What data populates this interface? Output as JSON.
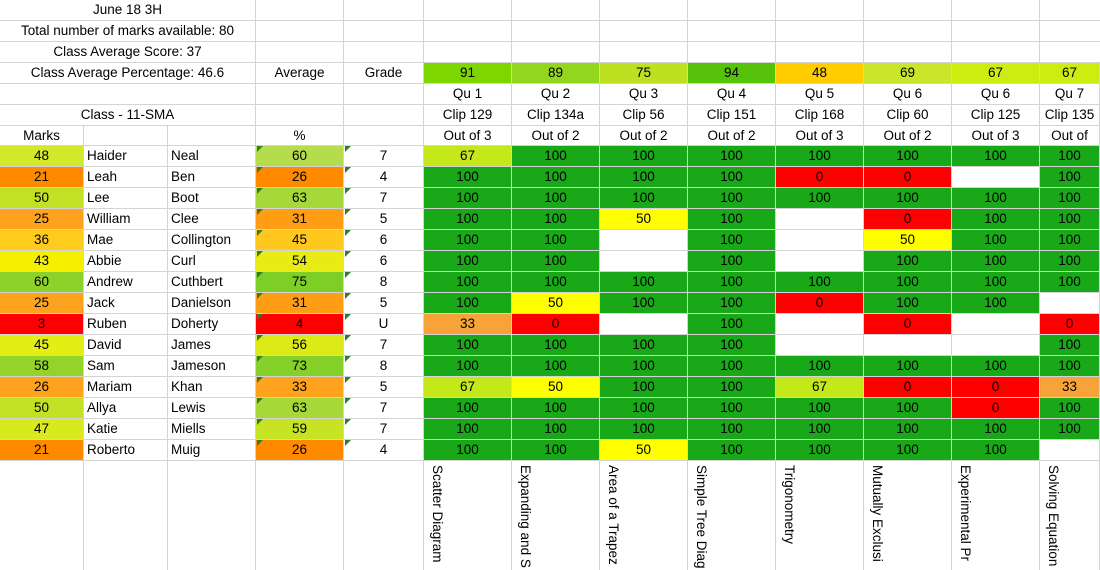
{
  "header": {
    "title": "June 18 3H",
    "total_marks": "Total number of marks available: 80",
    "class_avg_score": "Class Average Score: 37",
    "class_avg_pct": "Class Average Percentage: 46.6",
    "average_label": "Average",
    "grade_label": "Grade",
    "class_label": "Class - 11-SMA",
    "marks_label": "Marks",
    "pct_label": "%"
  },
  "colors": {
    "dark_green": "#2BA713",
    "light_green": "#99CC1A",
    "yellow_green": "#C7EA0E",
    "yellow": "#FFFF00",
    "amber": "#FFC000",
    "orange": "#FF8C0A",
    "light_orange": "#FFA41E",
    "red": "#FF0000",
    "white": "#FFFFFF"
  },
  "questions": [
    {
      "avg": "91",
      "qu": "Qu 1",
      "clip": "Clip 129",
      "out_of": "Out of 3",
      "topic": "Scatter Diagram",
      "color": "#7ed600"
    },
    {
      "avg": "89",
      "qu": "Qu 2",
      "clip": "Clip 134a",
      "out_of": "Out of 2",
      "topic": "Expanding and S",
      "color": "#92d61e"
    },
    {
      "avg": "75",
      "qu": "Qu 3",
      "clip": "Clip 56",
      "out_of": "Out of 2",
      "topic": "Area of a Trapez",
      "color": "#bde021"
    },
    {
      "avg": "94",
      "qu": "Qu 4",
      "clip": "Clip 151",
      "out_of": "Out of 2",
      "topic": "Simple Tree Diag",
      "color": "#56c20a"
    },
    {
      "avg": "48",
      "qu": "Qu 5",
      "clip": "Clip 168",
      "out_of": "Out of 3",
      "topic": "Trigonometry",
      "color": "#ffcc00"
    },
    {
      "avg": "69",
      "qu": "Qu 6",
      "clip": "Clip 60",
      "out_of": "Out of 2",
      "topic": "Mutually Exclusi",
      "color": "#c9e62a"
    },
    {
      "avg": "67",
      "qu": "Qu 6",
      "clip": "Clip 125",
      "out_of": "Out of 3",
      "topic": "Experimental Pr",
      "color": "#cdec10"
    },
    {
      "avg": "67",
      "qu": "Qu 7",
      "clip": "Clip 135",
      "out_of": "Out of",
      "topic": "Solving Equation",
      "color": "#cdec10"
    }
  ],
  "students": [
    {
      "marks": "48",
      "first": "Haider",
      "last": "Neal",
      "pct": "60",
      "grade": "7",
      "mcolor": "#d2e82a",
      "pcolor": "#b4dc4b",
      "scores": [
        "67",
        "100",
        "100",
        "100",
        "100",
        "100",
        "100",
        "100"
      ]
    },
    {
      "marks": "21",
      "first": "Leah",
      "last": "Ben",
      "pct": "26",
      "grade": "4",
      "mcolor": "#ff8a00",
      "pcolor": "#ff8a00",
      "scores": [
        "100",
        "100",
        "100",
        "100",
        "0",
        "0",
        "",
        "100"
      ]
    },
    {
      "marks": "50",
      "first": "Lee",
      "last": "Boot",
      "pct": "63",
      "grade": "7",
      "mcolor": "#c2e024",
      "pcolor": "#a6d83a",
      "scores": [
        "100",
        "100",
        "100",
        "100",
        "100",
        "100",
        "100",
        "100"
      ]
    },
    {
      "marks": "25",
      "first": "William",
      "last": "Clee",
      "pct": "31",
      "grade": "5",
      "mcolor": "#ffa31e",
      "pcolor": "#ff9e14",
      "scores": [
        "100",
        "100",
        "50",
        "100",
        "",
        "0",
        "100",
        "100"
      ]
    },
    {
      "marks": "36",
      "first": "Mae",
      "last": "Collington",
      "pct": "45",
      "grade": "6",
      "mcolor": "#ffcc1e",
      "pcolor": "#ffc81e",
      "scores": [
        "100",
        "100",
        "",
        "100",
        "",
        "50",
        "100",
        "100"
      ]
    },
    {
      "marks": "43",
      "first": "Abbie",
      "last": "Curl",
      "pct": "54",
      "grade": "6",
      "mcolor": "#f4f000",
      "pcolor": "#e8ec14",
      "scores": [
        "100",
        "100",
        "",
        "100",
        "",
        "100",
        "100",
        "100"
      ]
    },
    {
      "marks": "60",
      "first": "Andrew",
      "last": "Cuthbert",
      "pct": "75",
      "grade": "8",
      "mcolor": "#8cd22a",
      "pcolor": "#7ece28",
      "scores": [
        "100",
        "100",
        "100",
        "100",
        "100",
        "100",
        "100",
        "100"
      ]
    },
    {
      "marks": "25",
      "first": "Jack",
      "last": "Danielson",
      "pct": "31",
      "grade": "5",
      "mcolor": "#ffa31e",
      "pcolor": "#ff9e14",
      "scores": [
        "100",
        "50",
        "100",
        "100",
        "0",
        "100",
        "100",
        ""
      ]
    },
    {
      "marks": "3",
      "first": "Ruben",
      "last": "Doherty",
      "pct": "4",
      "grade": "U",
      "mcolor": "#ff0000",
      "pcolor": "#ff0000",
      "scores": [
        "33",
        "0",
        "",
        "100",
        "",
        "0",
        "",
        "0"
      ]
    },
    {
      "marks": "45",
      "first": "David",
      "last": "James",
      "pct": "56",
      "grade": "7",
      "mcolor": "#e4ee14",
      "pcolor": "#dceb18",
      "scores": [
        "100",
        "100",
        "100",
        "100",
        "",
        "",
        "",
        "100"
      ]
    },
    {
      "marks": "58",
      "first": "Sam",
      "last": "Jameson",
      "pct": "73",
      "grade": "8",
      "mcolor": "#94d42a",
      "pcolor": "#86d02a",
      "scores": [
        "100",
        "100",
        "100",
        "100",
        "100",
        "100",
        "100",
        "100"
      ]
    },
    {
      "marks": "26",
      "first": "Mariam",
      "last": "Khan",
      "pct": "33",
      "grade": "5",
      "mcolor": "#ffa31e",
      "pcolor": "#ffa31e",
      "scores": [
        "67",
        "50",
        "100",
        "100",
        "67",
        "0",
        "0",
        "33"
      ]
    },
    {
      "marks": "50",
      "first": "Allya",
      "last": "Lewis",
      "pct": "63",
      "grade": "7",
      "mcolor": "#c2e024",
      "pcolor": "#a6d83a",
      "scores": [
        "100",
        "100",
        "100",
        "100",
        "100",
        "100",
        "0",
        "100"
      ]
    },
    {
      "marks": "47",
      "first": "Katie",
      "last": "Miells",
      "pct": "59",
      "grade": "7",
      "mcolor": "#d8ea1e",
      "pcolor": "#c6e424",
      "scores": [
        "100",
        "100",
        "100",
        "100",
        "100",
        "100",
        "100",
        "100"
      ]
    },
    {
      "marks": "21",
      "first": "Roberto",
      "last": "Muig",
      "pct": "26",
      "grade": "4",
      "mcolor": "#ff8a00",
      "pcolor": "#ff8a00",
      "scores": [
        "100",
        "100",
        "50",
        "100",
        "100",
        "100",
        "100",
        ""
      ]
    }
  ]
}
